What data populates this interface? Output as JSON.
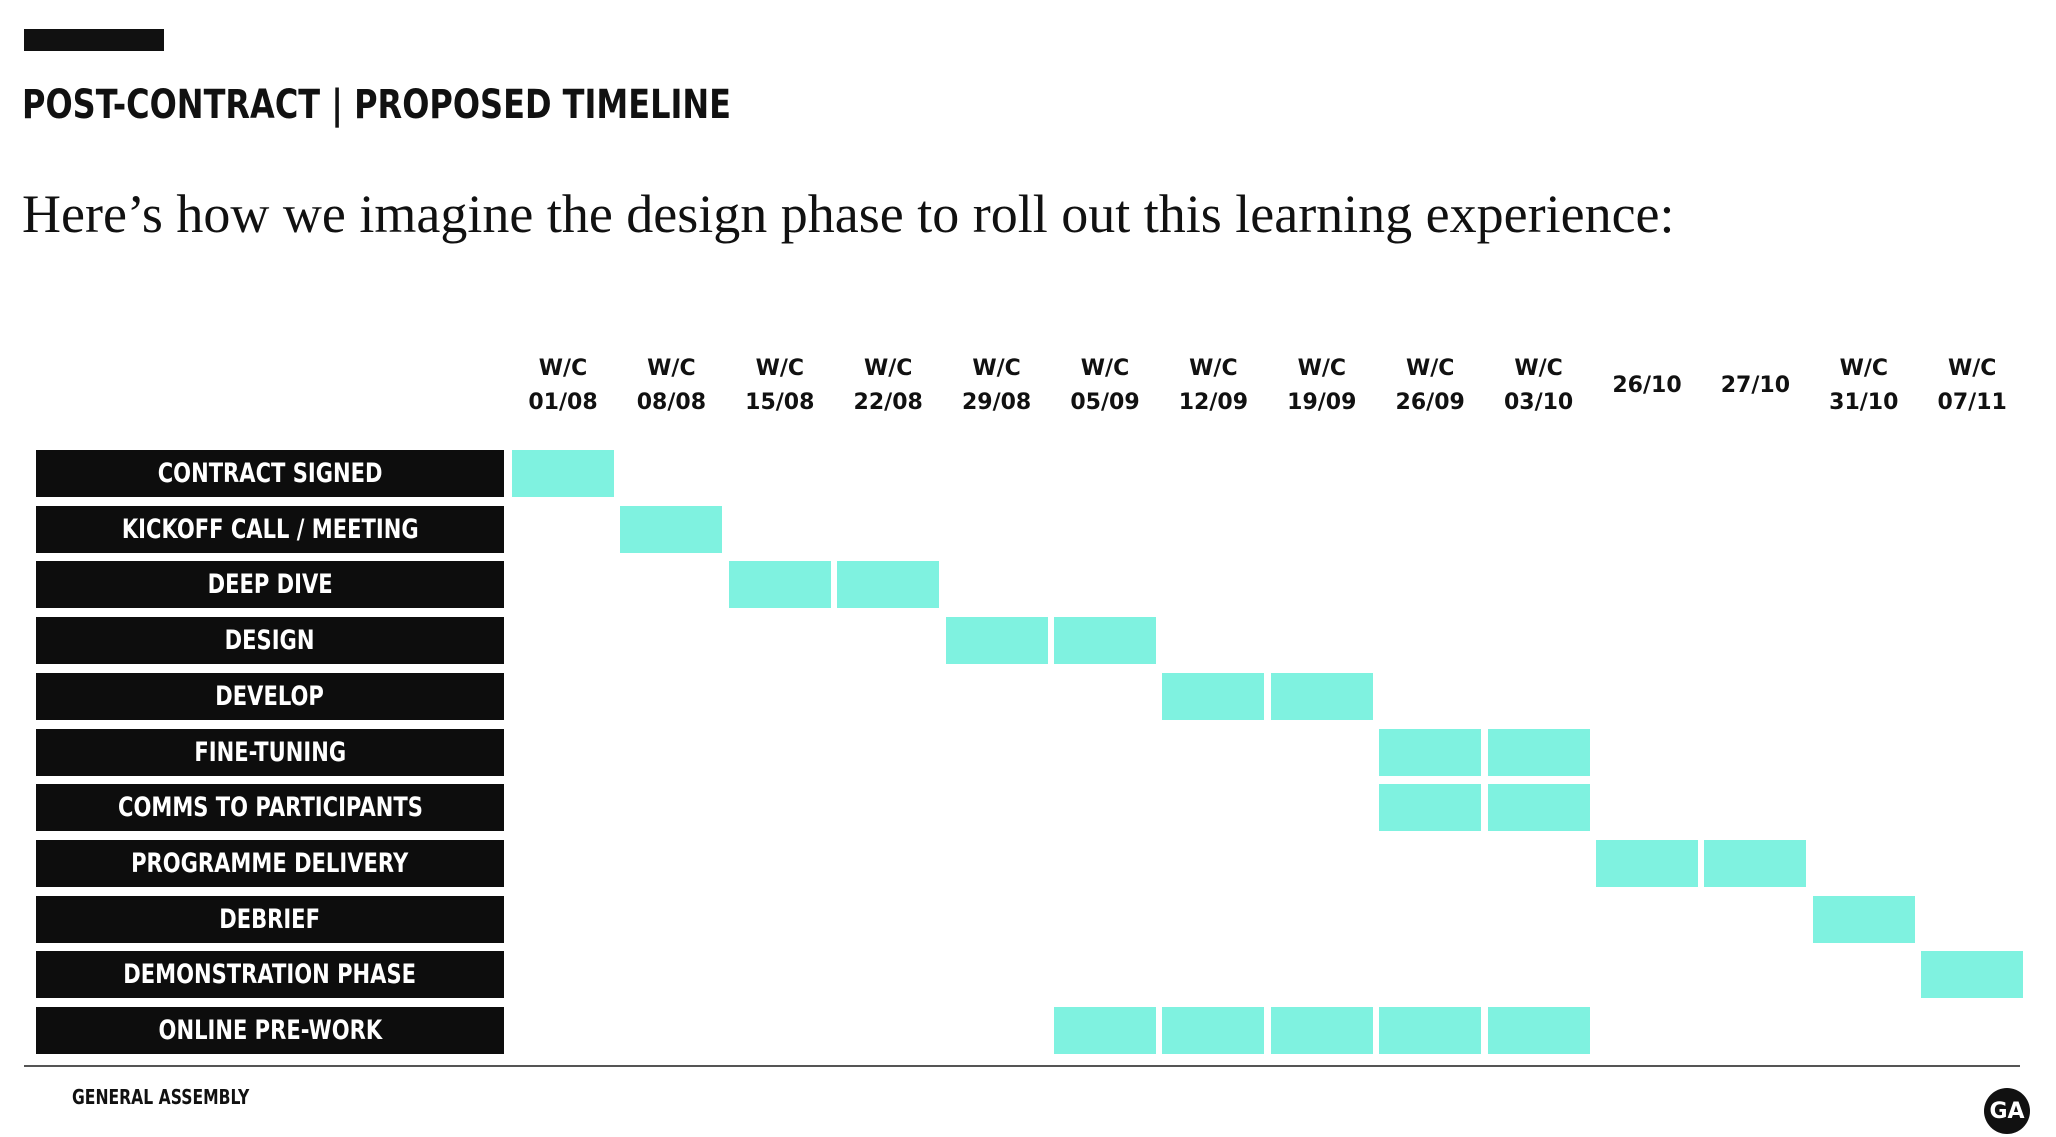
{
  "header": {
    "title": "POST-CONTRACT | PROPOSED TIMELINE",
    "subtitle": "Here’s how we imagine the design phase to roll out this learning experience:"
  },
  "timeline": {
    "weeks": [
      {
        "prefix": "W/C",
        "date": "01/08"
      },
      {
        "prefix": "W/C",
        "date": "08/08"
      },
      {
        "prefix": "W/C",
        "date": "15/08"
      },
      {
        "prefix": "W/C",
        "date": "22/08"
      },
      {
        "prefix": "W/C",
        "date": "29/08"
      },
      {
        "prefix": "W/C",
        "date": "05/09"
      },
      {
        "prefix": "W/C",
        "date": "12/09"
      },
      {
        "prefix": "W/C",
        "date": "19/09"
      },
      {
        "prefix": "W/C",
        "date": "26/09"
      },
      {
        "prefix": "W/C",
        "date": "03/10"
      },
      {
        "prefix": "",
        "date": "26/10"
      },
      {
        "prefix": "",
        "date": "27/10"
      },
      {
        "prefix": "W/C",
        "date": "31/10"
      },
      {
        "prefix": "W/C",
        "date": "07/11"
      }
    ],
    "tasks": [
      {
        "label": "CONTRACT SIGNED",
        "weeks": [
          "01/08"
        ]
      },
      {
        "label": "KICKOFF CALL / MEETING",
        "weeks": [
          "08/08"
        ]
      },
      {
        "label": "DEEP DIVE",
        "weeks": [
          "15/08",
          "22/08"
        ]
      },
      {
        "label": "DESIGN",
        "weeks": [
          "29/08",
          "05/09"
        ]
      },
      {
        "label": "DEVELOP",
        "weeks": [
          "12/09",
          "19/09"
        ]
      },
      {
        "label": "FINE-TUNING",
        "weeks": [
          "26/09",
          "03/10"
        ]
      },
      {
        "label": "COMMS TO PARTICIPANTS",
        "weeks": [
          "26/09",
          "03/10"
        ]
      },
      {
        "label": "PROGRAMME DELIVERY",
        "weeks": [
          "26/10",
          "27/10"
        ]
      },
      {
        "label": "DEBRIEF",
        "weeks": [
          "31/10"
        ]
      },
      {
        "label": "DEMONSTRATION PHASE",
        "weeks": [
          "07/11"
        ]
      },
      {
        "label": "ONLINE PRE-WORK",
        "weeks": [
          "05/09",
          "12/09",
          "19/09",
          "26/09",
          "03/10"
        ]
      }
    ],
    "colors": {
      "bar": "#7ff2e0",
      "label_bg": "#0d0d0d"
    }
  },
  "footer": {
    "brand": "GENERAL ASSEMBLY",
    "logo": "GA"
  }
}
